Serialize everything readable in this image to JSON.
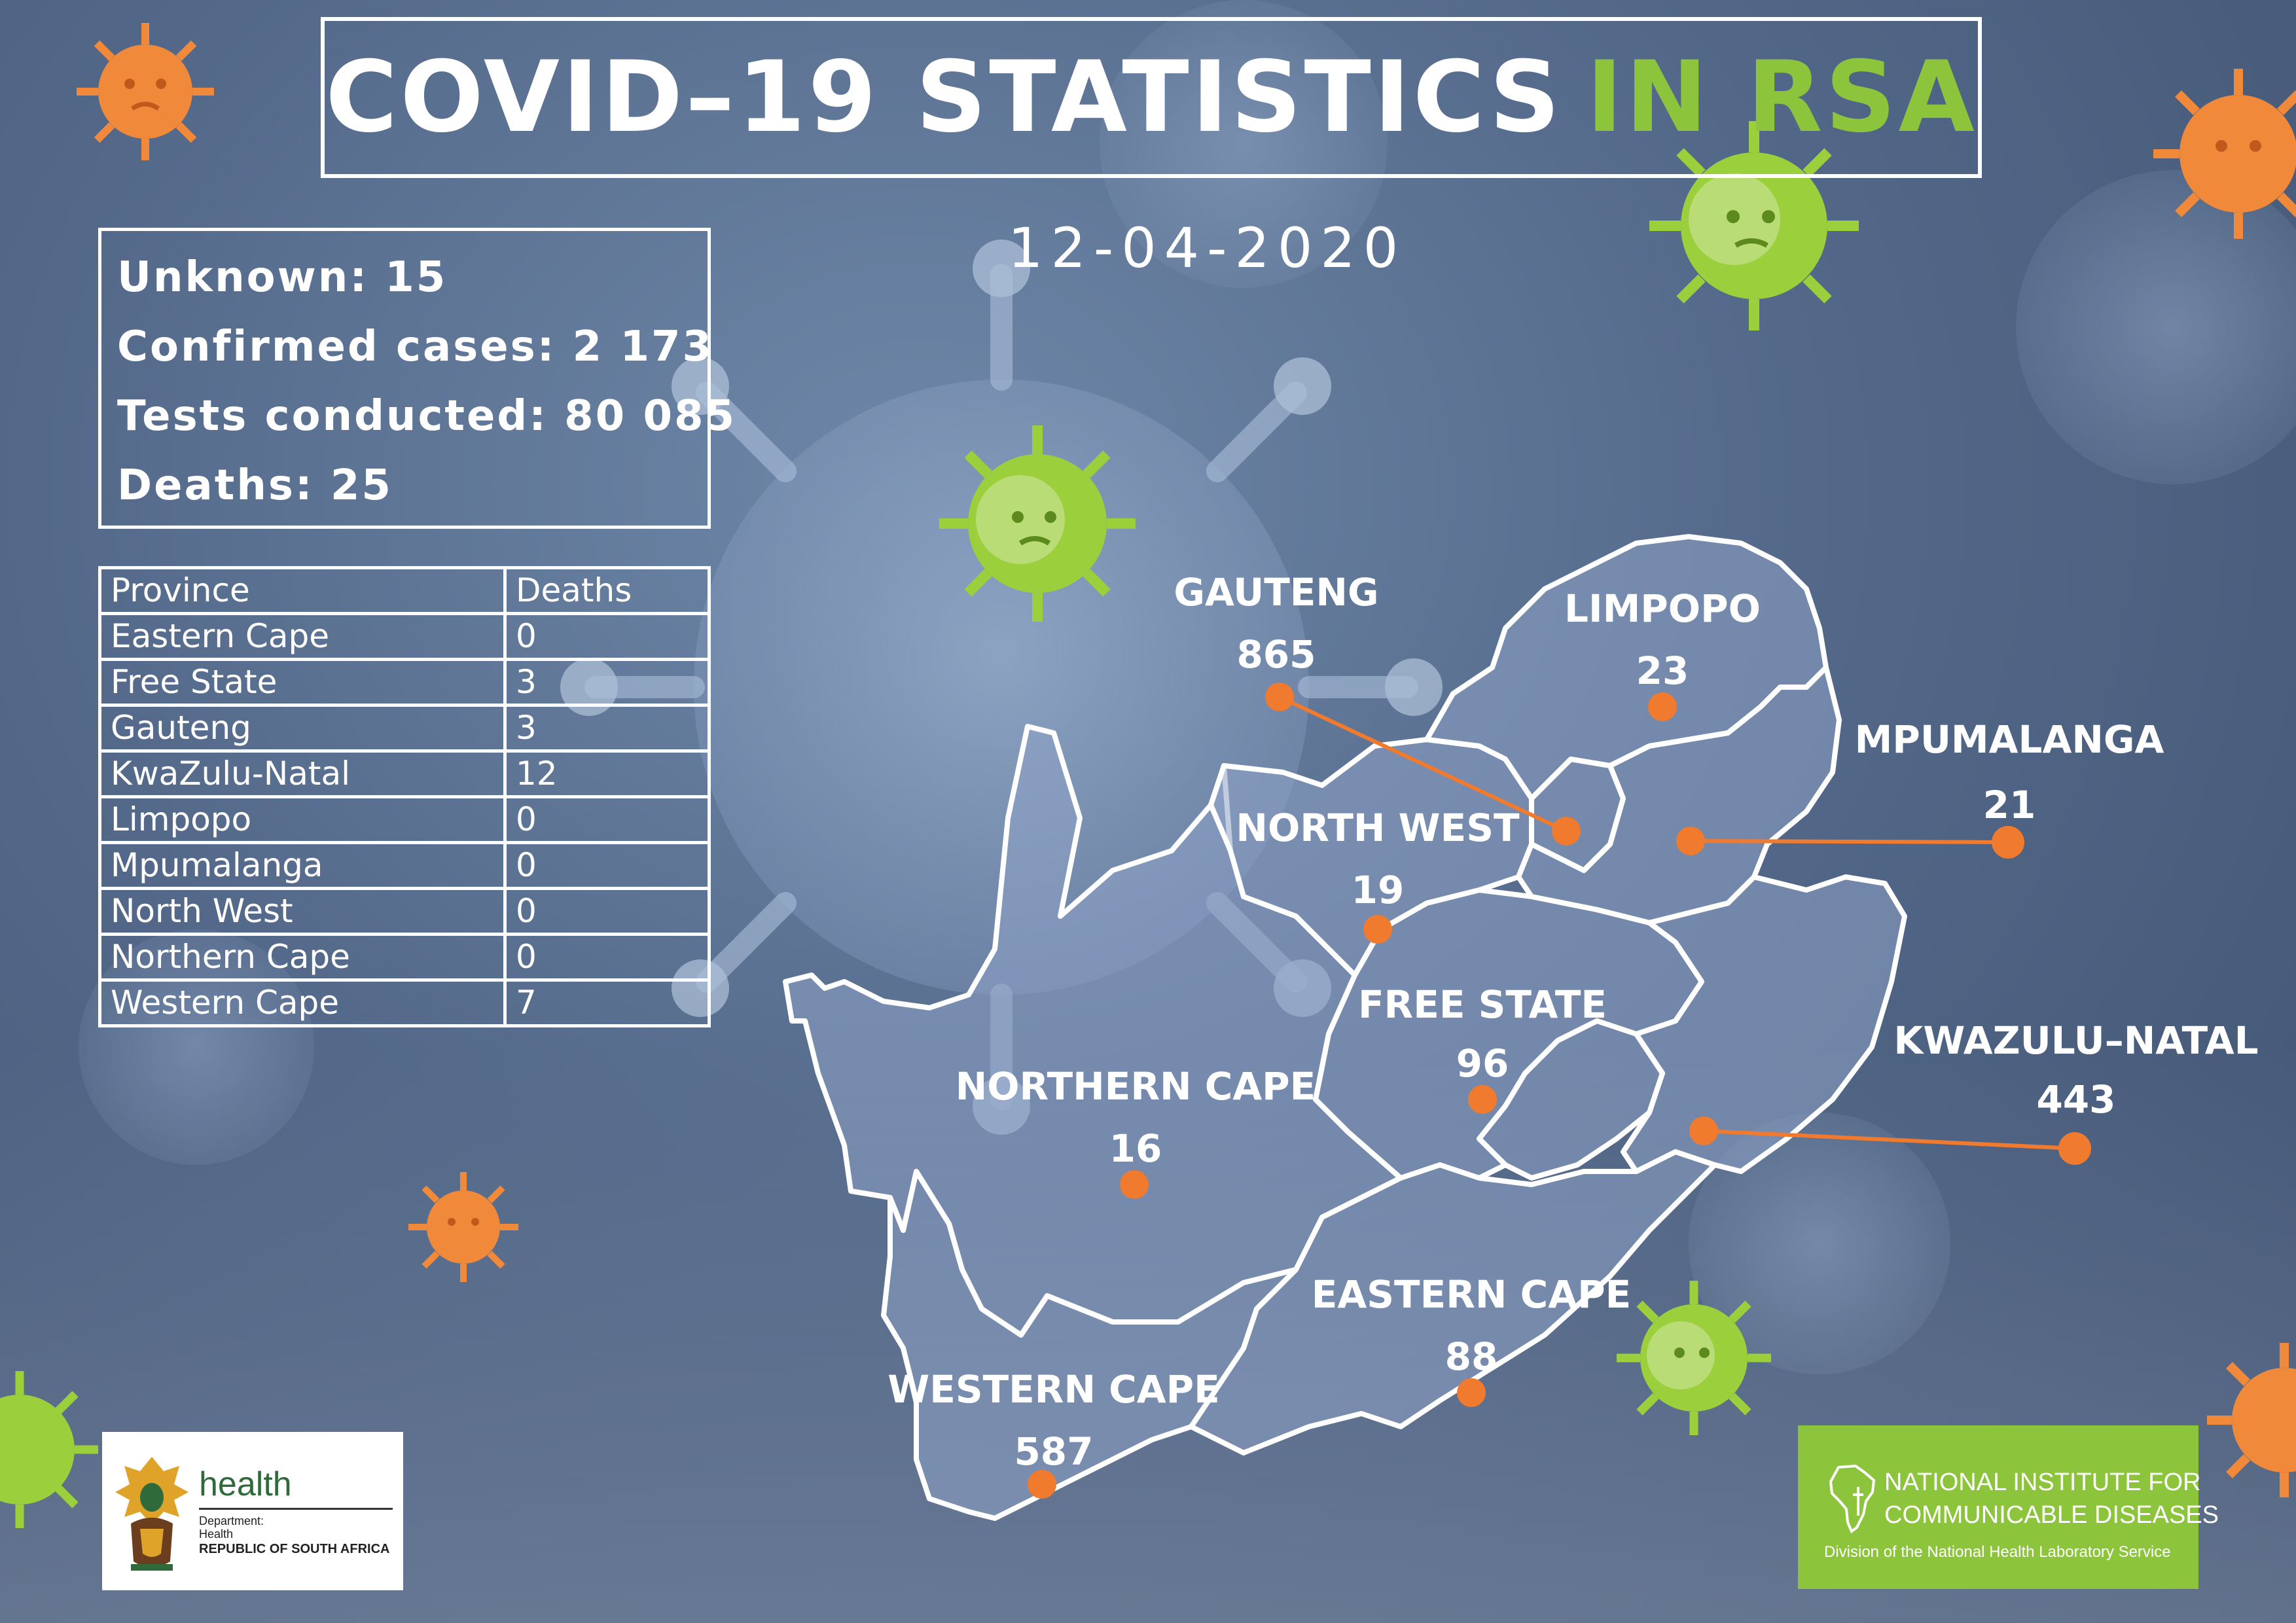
{
  "title": {
    "main": "COVID–19 STATISTICS",
    "accent": "IN RSA"
  },
  "date": "12-04-2020",
  "summary": [
    "Unknown: 15",
    "Confirmed cases: 2 173",
    "Tests conducted: 80 085",
    "Deaths: 25"
  ],
  "deaths_table": {
    "headers": [
      "Province",
      "Deaths"
    ],
    "rows": [
      [
        "Eastern Cape",
        "0"
      ],
      [
        "Free State",
        "3"
      ],
      [
        "Gauteng",
        "3"
      ],
      [
        "KwaZulu-Natal",
        "12"
      ],
      [
        "Limpopo",
        "0"
      ],
      [
        "Mpumalanga",
        "0"
      ],
      [
        "North West",
        "0"
      ],
      [
        "Northern Cape",
        "0"
      ],
      [
        "Western Cape",
        "7"
      ]
    ]
  },
  "map_provinces": [
    {
      "name": "GAUTENG",
      "cases": "865"
    },
    {
      "name": "LIMPOPO",
      "cases": "23"
    },
    {
      "name": "MPUMALANGA",
      "cases": "21"
    },
    {
      "name": "NORTH WEST",
      "cases": "19"
    },
    {
      "name": "FREE STATE",
      "cases": "96"
    },
    {
      "name": "KWAZULU–NATAL",
      "cases": "443"
    },
    {
      "name": "NORTHERN CAPE",
      "cases": "16"
    },
    {
      "name": "EASTERN CAPE",
      "cases": "88"
    },
    {
      "name": "WESTERN CAPE",
      "cases": "587"
    }
  ],
  "logos": {
    "health": {
      "word": "health",
      "dept_line1": "Department:",
      "dept_line2": "Health",
      "country": "REPUBLIC OF SOUTH AFRICA"
    },
    "nicd": {
      "line1": "NATIONAL INSTITUTE FOR",
      "line2": "COMMUNICABLE DISEASES",
      "sub": "Division of the National Health Laboratory Service"
    }
  },
  "colors": {
    "accent_green": "#8cc43c",
    "marker_orange": "#f07a2e",
    "virus_orange": "#f08a3a",
    "virus_green": "#9ccf3c",
    "background": "#54698a"
  },
  "icons": [
    "virus-icon",
    "coat-of-arms-icon",
    "africa-outline-icon"
  ]
}
